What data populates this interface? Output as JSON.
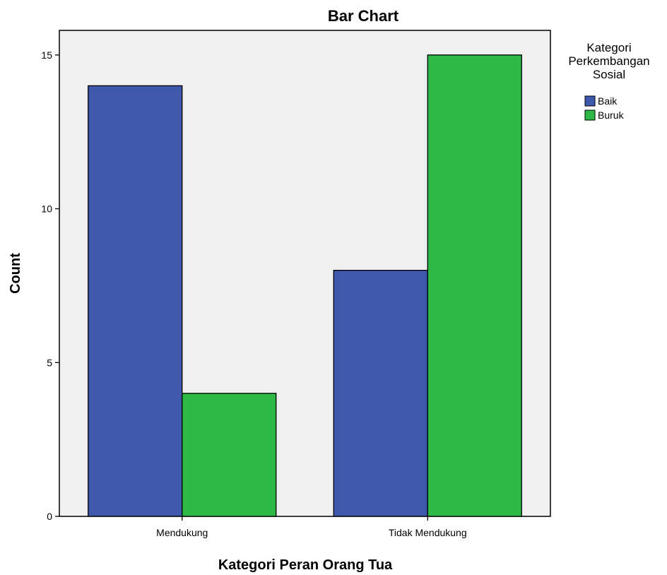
{
  "chart_data": {
    "type": "bar",
    "title": "Bar Chart",
    "xlabel": "Kategori Peran Orang Tua",
    "ylabel": "Count",
    "categories": [
      "Mendukung",
      "Tidak Mendukung"
    ],
    "series": [
      {
        "name": "Baik",
        "values": [
          14,
          8
        ],
        "color": "#3e58ac"
      },
      {
        "name": "Buruk",
        "values": [
          4,
          15
        ],
        "color": "#2eb846"
      }
    ],
    "ylim": [
      0,
      15.8
    ],
    "yticks": [
      0,
      5,
      10,
      15
    ],
    "legend": {
      "title_lines": [
        "Kategori",
        "Perkembangan",
        "Sosial"
      ],
      "placement": "right-top"
    },
    "plot_background": "#f0f0f0",
    "grid": false
  }
}
